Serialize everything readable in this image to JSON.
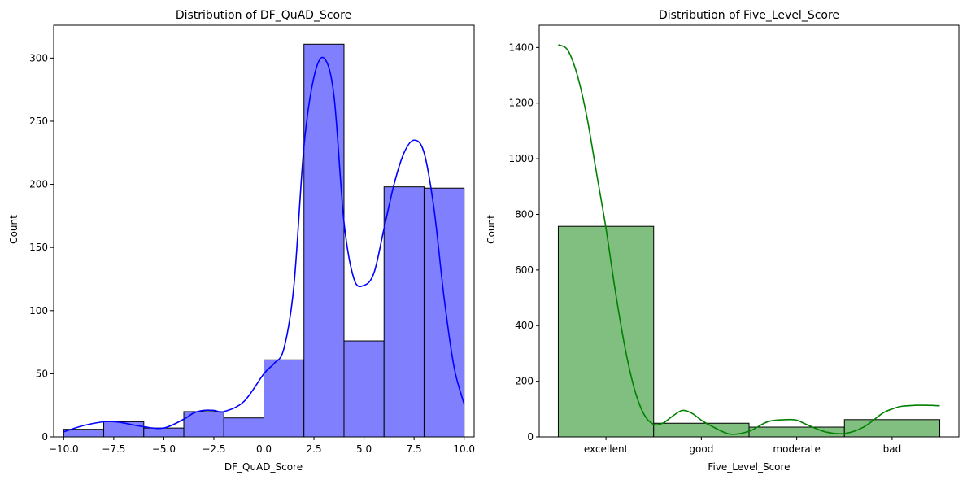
{
  "chart_data": [
    {
      "type": "bar",
      "subtype": "histogram-with-kde",
      "title": "Distribution of DF_QuAD_Score",
      "xlabel": "DF_QuAD_Score",
      "ylabel": "Count",
      "xlim": [
        -10.5,
        10.5
      ],
      "ylim": [
        0,
        326
      ],
      "xticks": [
        -10.0,
        -7.5,
        -5.0,
        -2.5,
        0.0,
        2.5,
        5.0,
        7.5,
        10.0
      ],
      "xtick_labels": [
        "−10.0",
        "−7.5",
        "−5.0",
        "−2.5",
        "0.0",
        "2.5",
        "5.0",
        "7.5",
        "10.0"
      ],
      "yticks": [
        0,
        50,
        100,
        150,
        200,
        250,
        300
      ],
      "bin_edges": [
        -10,
        -8,
        -6,
        -4,
        -2,
        0,
        2,
        4,
        6,
        8,
        10
      ],
      "values": [
        6,
        12,
        7,
        20,
        15,
        61,
        311,
        76,
        198,
        197
      ],
      "bar_color": "#8080ff",
      "kde_color": "#0000ff",
      "kde": {
        "x": [
          -10,
          -9,
          -8,
          -7.5,
          -7,
          -6,
          -5,
          -4,
          -3.5,
          -3,
          -2.5,
          -2,
          -1,
          0,
          0.5,
          1,
          1.5,
          2,
          2.5,
          3,
          3.5,
          4,
          4.5,
          5,
          5.5,
          6,
          6.5,
          7,
          7.5,
          8,
          8.5,
          9,
          9.5,
          10
        ],
        "y": [
          4,
          9,
          12,
          12,
          11,
          8,
          7,
          14,
          19,
          21,
          21,
          20,
          28,
          50,
          58,
          70,
          120,
          230,
          285,
          300,
          270,
          170,
          125,
          120,
          130,
          165,
          200,
          225,
          235,
          225,
          180,
          110,
          55,
          26
        ]
      }
    },
    {
      "type": "bar",
      "subtype": "histogram-with-kde",
      "title": "Distribution of Five_Level_Score",
      "xlabel": "Five_Level_Score",
      "ylabel": "Count",
      "xlim": [
        -0.7,
        3.7
      ],
      "ylim": [
        0,
        1480
      ],
      "categories": [
        "excellent",
        "good",
        "moderate",
        "bad"
      ],
      "values": [
        757,
        49,
        35,
        62
      ],
      "yticks": [
        0,
        200,
        400,
        600,
        800,
        1000,
        1200,
        1400
      ],
      "bar_color": "#80bf80",
      "kde_color": "#008000",
      "kde": {
        "x": [
          -0.5,
          -0.4,
          -0.3,
          -0.2,
          -0.1,
          0,
          0.1,
          0.2,
          0.3,
          0.4,
          0.5,
          0.6,
          0.7,
          0.8,
          0.9,
          1.0,
          1.1,
          1.3,
          1.5,
          1.7,
          1.9,
          2.0,
          2.1,
          2.3,
          2.5,
          2.7,
          2.9,
          3.0,
          3.1,
          3.3,
          3.5
        ],
        "y": [
          1410,
          1390,
          1300,
          1150,
          950,
          750,
          520,
          320,
          170,
          80,
          45,
          50,
          75,
          95,
          85,
          60,
          40,
          10,
          20,
          55,
          62,
          60,
          45,
          18,
          12,
          35,
          85,
          100,
          110,
          114,
          112
        ]
      }
    }
  ]
}
